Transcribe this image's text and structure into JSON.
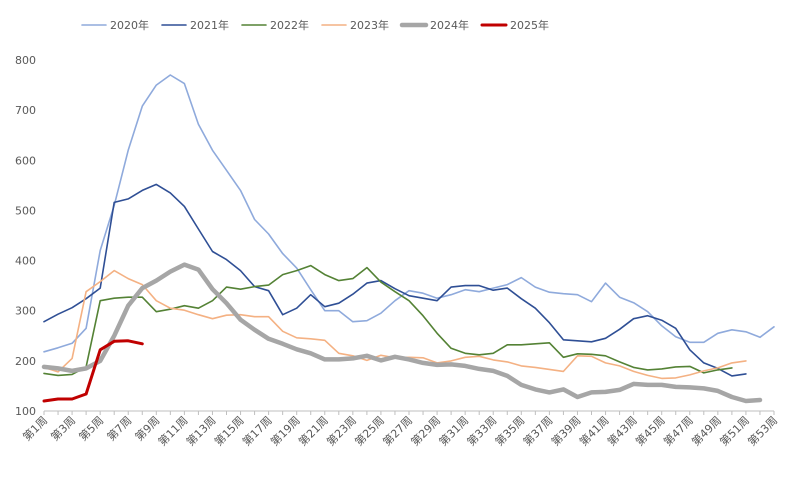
{
  "chart_data": {
    "type": "line",
    "title": "",
    "xlabel": "",
    "ylabel": "",
    "ylim": [
      100,
      800
    ],
    "yticks": [
      100,
      200,
      300,
      400,
      500,
      600,
      700,
      800
    ],
    "grid": false,
    "legend_position": "top",
    "x_tick_labels": [
      "第1周",
      "第3周",
      "第5周",
      "第7周",
      "第9周",
      "第11周",
      "第13周",
      "第15周",
      "第17周",
      "第19周",
      "第21周",
      "第23周",
      "第25周",
      "第27周",
      "第29周",
      "第31周",
      "第33周",
      "第35周",
      "第37周",
      "第39周",
      "第41周",
      "第43周",
      "第45周",
      "第47周",
      "第49周",
      "第51周",
      "第53周"
    ],
    "x": [
      1,
      2,
      3,
      4,
      5,
      6,
      7,
      8,
      9,
      10,
      11,
      12,
      13,
      14,
      15,
      16,
      17,
      18,
      19,
      20,
      21,
      22,
      23,
      24,
      25,
      26,
      27,
      28,
      29,
      30,
      31,
      32,
      33,
      34,
      35,
      36,
      37,
      38,
      39,
      40,
      41,
      42,
      43,
      44,
      45,
      46,
      47,
      48,
      49,
      50,
      51,
      52,
      53
    ],
    "series": [
      {
        "name": "2020年",
        "color": "#8faadc",
        "width": 1.6,
        "values": [
          218,
          226,
          235,
          265,
          420,
          510,
          620,
          708,
          750,
          770,
          753,
          672,
          620,
          580,
          540,
          482,
          453,
          414,
          385,
          342,
          300,
          300,
          278,
          280,
          295,
          320,
          340,
          335,
          325,
          332,
          342,
          338,
          345,
          352,
          366,
          347,
          337,
          334,
          332,
          318,
          355,
          327,
          316,
          298,
          270,
          248,
          237,
          237,
          255,
          262,
          258,
          247,
          268
        ]
      },
      {
        "name": "2021年",
        "color": "#2f4f95",
        "width": 1.6,
        "values": [
          278,
          293,
          306,
          324,
          345,
          516,
          523,
          540,
          552,
          535,
          508,
          463,
          418,
          402,
          380,
          348,
          340,
          292,
          305,
          332,
          308,
          315,
          333,
          355,
          360,
          344,
          330,
          325,
          320,
          347,
          350,
          350,
          341,
          345,
          324,
          305,
          276,
          242,
          240,
          238,
          245,
          263,
          284,
          290,
          281,
          265,
          222,
          196,
          185,
          170,
          174,
          null,
          null
        ]
      },
      {
        "name": "2022年",
        "color": "#548235",
        "width": 1.6,
        "values": [
          175,
          171,
          173,
          188,
          320,
          325,
          327,
          327,
          298,
          303,
          310,
          305,
          320,
          347,
          343,
          348,
          351,
          372,
          380,
          390,
          372,
          360,
          364,
          386,
          357,
          338,
          320,
          290,
          255,
          225,
          215,
          212,
          215,
          232,
          232,
          234,
          236,
          207,
          214,
          213,
          210,
          198,
          187,
          182,
          184,
          188,
          189,
          176,
          182,
          186,
          null,
          null,
          null
        ]
      },
      {
        "name": "2023年",
        "color": "#f4b183",
        "width": 1.6,
        "values": [
          187,
          178,
          205,
          338,
          358,
          380,
          364,
          352,
          320,
          305,
          301,
          292,
          284,
          291,
          292,
          288,
          288,
          259,
          246,
          244,
          241,
          215,
          210,
          201,
          211,
          206,
          207,
          206,
          196,
          200,
          207,
          209,
          202,
          198,
          190,
          187,
          183,
          179,
          210,
          209,
          196,
          190,
          179,
          171,
          165,
          166,
          172,
          180,
          186,
          196,
          200,
          null,
          null
        ]
      },
      {
        "name": "2024年",
        "color": "#a6a6a6",
        "width": 4.5,
        "values": [
          188,
          185,
          180,
          185,
          200,
          250,
          310,
          345,
          360,
          378,
          392,
          382,
          343,
          315,
          282,
          262,
          244,
          234,
          223,
          215,
          203,
          203,
          205,
          210,
          201,
          208,
          203,
          196,
          192,
          193,
          190,
          184,
          180,
          170,
          152,
          143,
          137,
          143,
          128,
          137,
          138,
          142,
          154,
          152,
          152,
          148,
          147,
          145,
          140,
          128,
          120,
          122,
          null
        ]
      },
      {
        "name": "2025年",
        "color": "#c00000",
        "width": 3,
        "values": [
          120,
          124,
          124,
          134,
          222,
          239,
          240,
          234,
          null,
          null,
          null,
          null,
          null,
          null,
          null,
          null,
          null,
          null,
          null,
          null,
          null,
          null,
          null,
          null,
          null,
          null,
          null,
          null,
          null,
          null,
          null,
          null,
          null,
          null,
          null,
          null,
          null,
          null,
          null,
          null,
          null,
          null,
          null,
          null,
          null,
          null,
          null,
          null,
          null,
          null,
          null,
          null,
          null
        ]
      }
    ]
  }
}
